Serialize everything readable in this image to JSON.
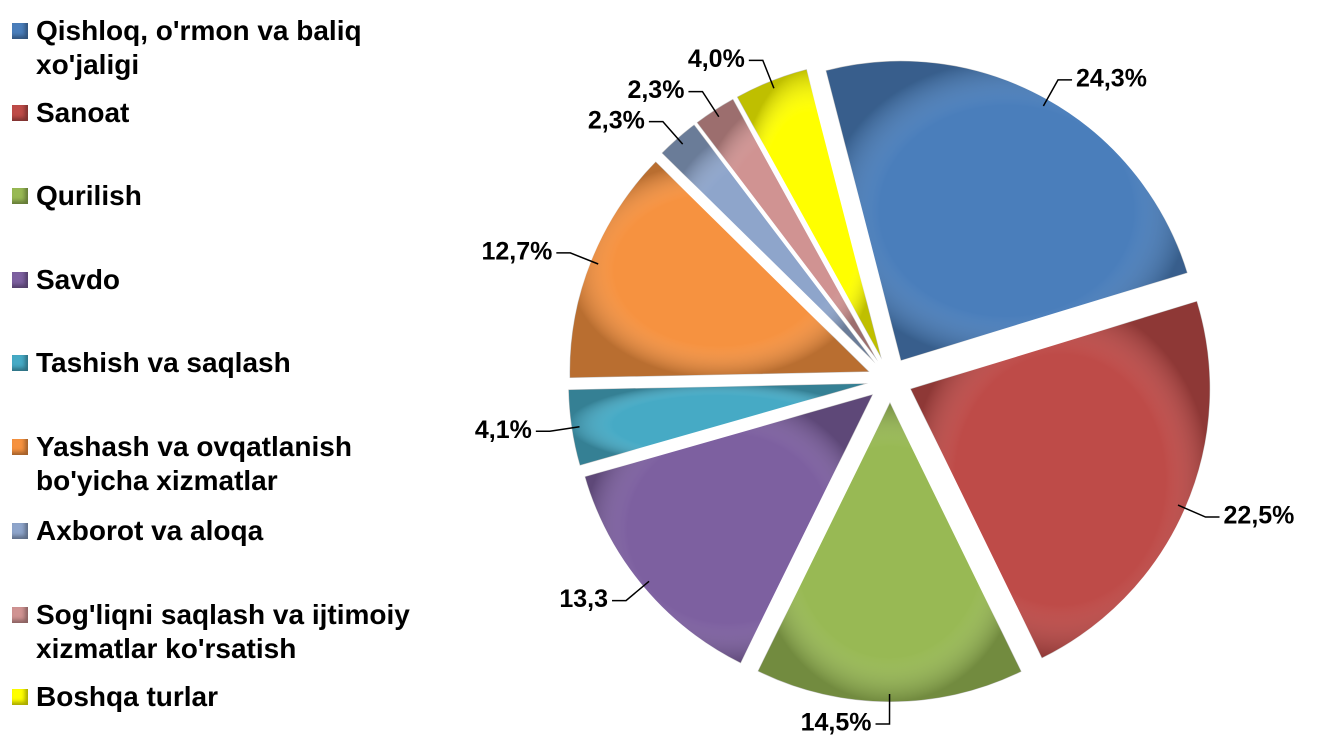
{
  "chart_data": {
    "type": "pie",
    "categories": [
      "Qishloq, o'rmon va baliq xo'jaligi",
      "Sanoat",
      "Qurilish",
      "Savdo",
      "Tashish va saqlash",
      "Yashash va ovqatlanish bo'yicha xizmatlar",
      "Axborot va aloqa",
      "Sog'liqni saqlash va ijtimoiy xizmatlar ko'rsatish",
      "Boshqa turlar"
    ],
    "values": [
      24.3,
      22.5,
      14.5,
      13.3,
      4.1,
      12.7,
      2.3,
      2.3,
      4.0
    ],
    "value_labels": [
      "24,3%",
      "22,5%",
      "14,5%",
      "13,3",
      "4,1%",
      "12,7%",
      "2,3%",
      "2,3%",
      "4,0%"
    ],
    "colors": [
      "#4a7ebb",
      "#be4b48",
      "#98b954",
      "#7d60a0",
      "#46aac5",
      "#f69240",
      "#8ea5cb",
      "#d09392",
      "#ffff00"
    ],
    "legend": "left"
  }
}
